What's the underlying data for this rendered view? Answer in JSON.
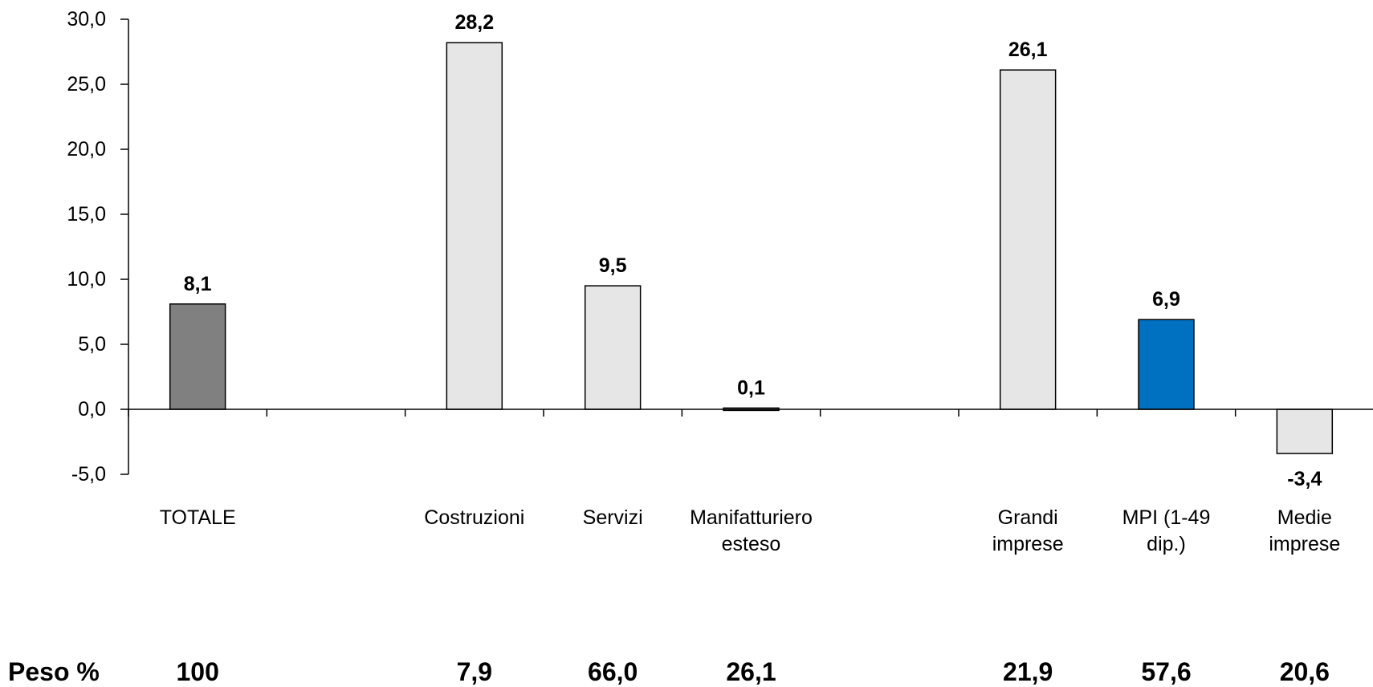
{
  "chart_data": {
    "type": "bar",
    "categories": [
      "TOTALE",
      "",
      "Costruzioni",
      "Servizi",
      "Manifatturiero esteso",
      "",
      "Grandi imprese",
      "MPI (1-49 dip.)",
      "Medie imprese"
    ],
    "category_lines": [
      [
        "TOTALE"
      ],
      [],
      [
        "Costruzioni"
      ],
      [
        "Servizi"
      ],
      [
        "Manifatturiero",
        "esteso"
      ],
      [],
      [
        "Grandi",
        "imprese"
      ],
      [
        "MPI (1-49",
        "dip.)"
      ],
      [
        "Medie",
        "imprese"
      ]
    ],
    "values": [
      8.1,
      null,
      28.2,
      9.5,
      0.1,
      null,
      26.1,
      6.9,
      -3.4
    ],
    "value_labels": [
      "8,1",
      "",
      "28,2",
      "9,5",
      "0,1",
      "",
      "26,1",
      "6,9",
      "-3,4"
    ],
    "bar_colors": [
      "#808080",
      null,
      "#e6e6e6",
      "#e6e6e6",
      "#e6e6e6",
      null,
      "#e6e6e6",
      "#0070c0",
      "#e6e6e6"
    ],
    "ylim": [
      -5,
      30
    ],
    "yticks": [
      -5,
      0,
      5,
      10,
      15,
      20,
      25,
      30
    ],
    "ytick_labels": [
      "-5,0",
      "0,0",
      "5,0",
      "10,0",
      "15,0",
      "20,0",
      "25,0",
      "30,0"
    ],
    "title": "",
    "xlabel": "",
    "ylabel": "",
    "grid": false,
    "weights": {
      "label": "Peso %",
      "values": [
        "100",
        "",
        "7,9",
        "66,0",
        "26,1",
        "",
        "21,9",
        "57,6",
        "20,6"
      ]
    }
  }
}
